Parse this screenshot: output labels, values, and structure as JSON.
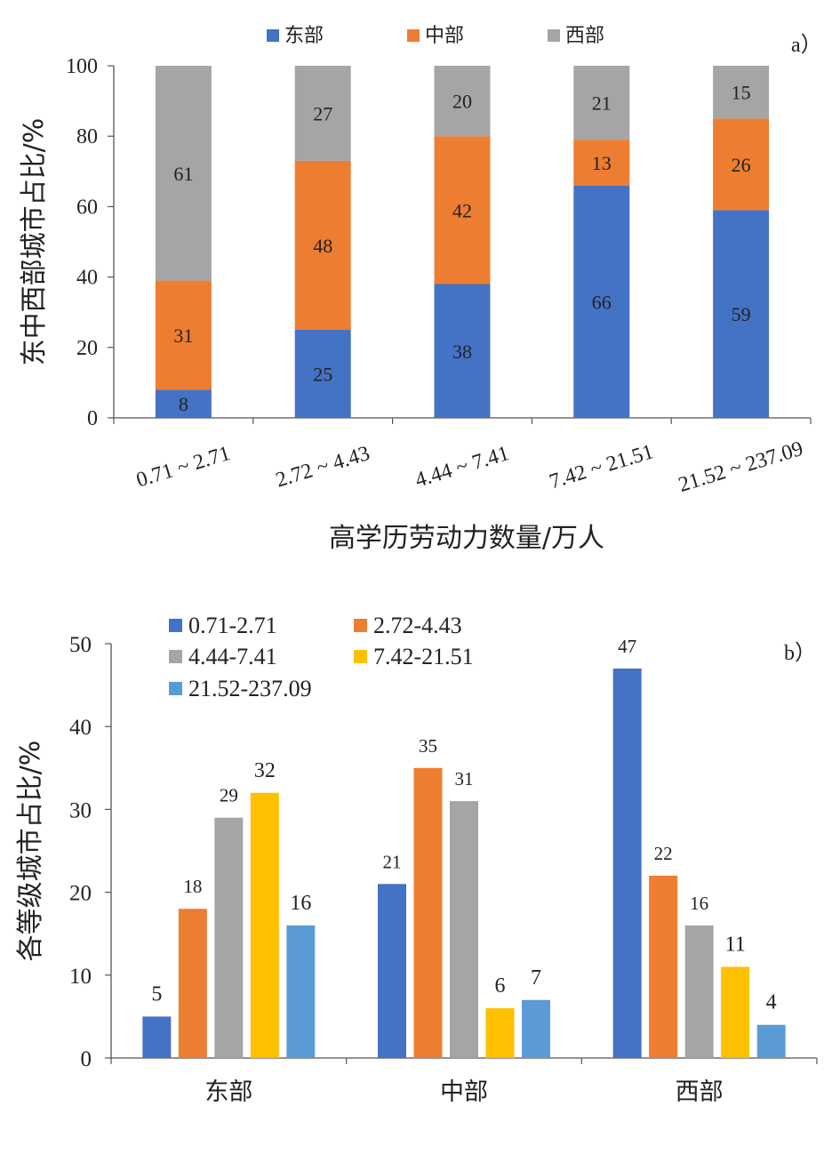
{
  "chart_data": [
    {
      "panel_label": "a）",
      "type": "bar",
      "stacked": true,
      "categories": [
        "0.71 ~ 2.71",
        "2.72 ~ 4.43",
        "4.44 ~ 7.41",
        "7.42 ~ 21.51",
        "21.52 ~ 237.09"
      ],
      "series": [
        {
          "name": "东部",
          "color": "#4472C4",
          "values": [
            8,
            25,
            38,
            66,
            59
          ]
        },
        {
          "name": "中部",
          "color": "#ED7D31",
          "values": [
            31,
            48,
            42,
            13,
            26
          ]
        },
        {
          "name": "西部",
          "color": "#A5A5A5",
          "values": [
            61,
            27,
            20,
            21,
            15
          ]
        }
      ],
      "xlabel": "高学历劳动力数量/万人",
      "ylabel": "东中西部城市占比/%",
      "ylim": [
        0,
        100
      ],
      "yticks": [
        0,
        20,
        40,
        60,
        80,
        100
      ],
      "legend": "top",
      "grid": false
    },
    {
      "panel_label": "b）",
      "type": "bar",
      "stacked": false,
      "categories": [
        "东部",
        "中部",
        "西部"
      ],
      "series": [
        {
          "name": "0.71-2.71",
          "color": "#4472C4",
          "values": [
            5,
            21,
            47
          ]
        },
        {
          "name": "2.72-4.43",
          "color": "#ED7D31",
          "values": [
            18,
            35,
            22
          ]
        },
        {
          "name": "4.44-7.41",
          "color": "#A5A5A5",
          "values": [
            29,
            31,
            16
          ]
        },
        {
          "name": "7.42-21.51",
          "color": "#FFC000",
          "values": [
            32,
            6,
            11
          ]
        },
        {
          "name": "21.52-237.09",
          "color": "#5B9BD5",
          "values": [
            16,
            7,
            4
          ]
        }
      ],
      "xlabel": "",
      "ylabel": "各等级城市占比/%",
      "ylim": [
        0,
        50
      ],
      "yticks": [
        0,
        10,
        20,
        30,
        40,
        50
      ],
      "legend": "top-left",
      "grid": false
    }
  ]
}
